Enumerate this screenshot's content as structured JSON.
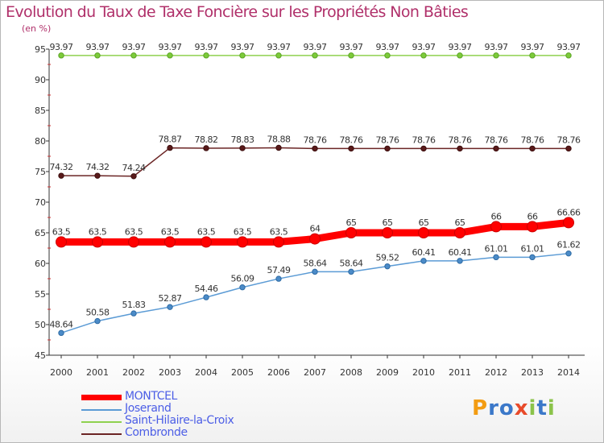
{
  "title": "Evolution du Taux de Taxe Foncière sur les Propriétés Non Bâties",
  "unit_label": "(en %)",
  "logo_text": "Proxiti",
  "colors": {
    "montcel": "#ff0000",
    "joserand": "#5b9bd5",
    "saint_hilaire": "#8fd14f",
    "combronde": "#6b2525",
    "title": "#b0306a",
    "legend_text": "#4c5ee6"
  },
  "chart_data": {
    "type": "line",
    "title": "Evolution du Taux de Taxe Foncière sur les Propriétés Non Bâties",
    "ylabel": "(en %)",
    "xlabel": "",
    "ylim": [
      45,
      95
    ],
    "yticks": [
      45,
      50,
      55,
      60,
      65,
      70,
      75,
      80,
      85,
      90,
      95
    ],
    "x": [
      "2000",
      "2001",
      "2002",
      "2003",
      "2004",
      "2005",
      "2006",
      "2007",
      "2008",
      "2009",
      "2010",
      "2011",
      "2012",
      "2013",
      "2014"
    ],
    "grid": false,
    "legend_position": "bottom-left",
    "series": [
      {
        "name": "MONTCEL",
        "key": "montcel",
        "values": [
          63.5,
          63.5,
          63.5,
          63.5,
          63.5,
          63.5,
          63.5,
          64,
          65,
          65,
          65,
          65,
          66,
          66,
          66.66
        ],
        "labels": [
          "63.5",
          "63.5",
          "63.5",
          "63.5",
          "63.5",
          "63.5",
          "63.5",
          "64",
          "65",
          "65",
          "65",
          "65",
          "66",
          "66",
          "66.66"
        ]
      },
      {
        "name": "Joserand",
        "key": "joserand",
        "values": [
          48.64,
          50.58,
          51.83,
          52.87,
          54.46,
          56.09,
          57.49,
          58.64,
          58.64,
          59.52,
          60.41,
          60.41,
          61.01,
          61.01,
          61.62
        ],
        "labels": [
          "48.64",
          "50.58",
          "51.83",
          "52.87",
          "54.46",
          "56.09",
          "57.49",
          "58.64",
          "58.64",
          "59.52",
          "60.41",
          "60.41",
          "61.01",
          "61.01",
          "61.62"
        ]
      },
      {
        "name": "Saint-Hilaire-la-Croix",
        "key": "saint_hilaire",
        "values": [
          93.97,
          93.97,
          93.97,
          93.97,
          93.97,
          93.97,
          93.97,
          93.97,
          93.97,
          93.97,
          93.97,
          93.97,
          93.97,
          93.97,
          93.97
        ],
        "labels": [
          "93.97",
          "93.97",
          "93.97",
          "93.97",
          "93.97",
          "93.97",
          "93.97",
          "93.97",
          "93.97",
          "93.97",
          "93.97",
          "93.97",
          "93.97",
          "93.97",
          "93.97"
        ]
      },
      {
        "name": "Combronde",
        "key": "combronde",
        "values": [
          74.32,
          74.32,
          74.24,
          78.87,
          78.82,
          78.83,
          78.88,
          78.76,
          78.76,
          78.76,
          78.76,
          78.76,
          78.76,
          78.76,
          78.76
        ],
        "labels": [
          "74.32",
          "74.32",
          "74.24",
          "78.87",
          "78.82",
          "78.83",
          "78.88",
          "78.76",
          "78.76",
          "78.76",
          "78.76",
          "78.76",
          "78.76",
          "78.76",
          "78.76"
        ]
      }
    ]
  }
}
